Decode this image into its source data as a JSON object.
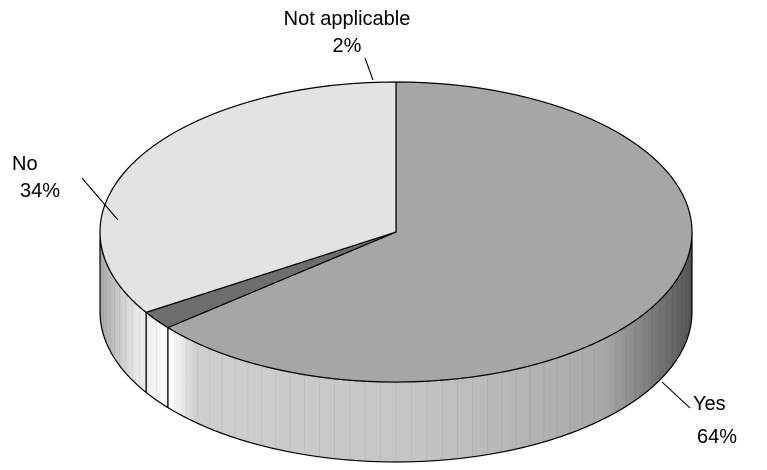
{
  "chart_data": {
    "type": "pie",
    "style": "3d",
    "slices": [
      {
        "label": "Yes",
        "value": 64,
        "value_label": "64%",
        "color": "#a6a6a6"
      },
      {
        "label": "Not applicable",
        "value": 2,
        "value_label": "2%",
        "color": "#6e6e6e"
      },
      {
        "label": "No",
        "value": 34,
        "value_label": "34%",
        "color": "#e3e3e3"
      }
    ],
    "legend": "none"
  }
}
